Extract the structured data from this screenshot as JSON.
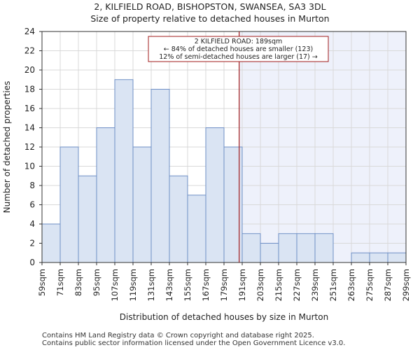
{
  "title_line1": "2, KILFIELD ROAD, BISHOPSTON, SWANSEA, SA3 3DL",
  "title_line2": "Size of property relative to detached houses in Murton",
  "footer_line1": "Contains HM Land Registry data © Crown copyright and database right 2025.",
  "footer_line2": "Contains public sector information licensed under the Open Government Licence v3.0.",
  "colors": {
    "bar_fill": "#dae4f3",
    "bar_stroke": "#6f8fc6",
    "shade": "#eef1fb",
    "marker": "#a01b1b",
    "grid": "#d9d9d9"
  },
  "chart_data": {
    "type": "bar",
    "xlabel": "Distribution of detached houses by size in Murton",
    "ylabel": "Number of detached properties",
    "ylim": [
      0,
      24
    ],
    "yticks": [
      0,
      2,
      4,
      6,
      8,
      10,
      12,
      14,
      16,
      18,
      20,
      22,
      24
    ],
    "bin_edges": [
      59,
      71,
      83,
      95,
      107,
      119,
      131,
      143,
      155,
      167,
      179,
      191,
      203,
      215,
      227,
      239,
      251,
      263,
      275,
      287,
      299
    ],
    "tick_labels": [
      "59sqm",
      "71sqm",
      "83sqm",
      "95sqm",
      "107sqm",
      "119sqm",
      "131sqm",
      "143sqm",
      "155sqm",
      "167sqm",
      "179sqm",
      "191sqm",
      "203sqm",
      "215sqm",
      "227sqm",
      "239sqm",
      "251sqm",
      "263sqm",
      "275sqm",
      "287sqm",
      "299sqm"
    ],
    "values": [
      4,
      12,
      9,
      14,
      19,
      12,
      18,
      9,
      7,
      14,
      12,
      3,
      2,
      3,
      3,
      3,
      0,
      1,
      1,
      1
    ],
    "grid": true,
    "marker": {
      "value": 189,
      "annotation": [
        "2 KILFIELD ROAD: 189sqm",
        "← 84% of detached houses are smaller (123)",
        "12% of semi-detached houses are larger (17) →"
      ]
    }
  }
}
